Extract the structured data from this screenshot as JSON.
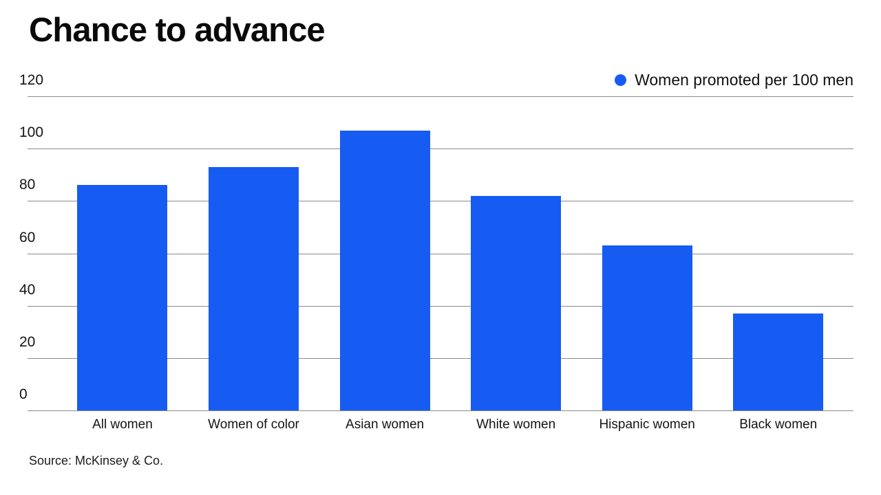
{
  "title": "Chance to advance",
  "legend": {
    "label": "Women promoted per 100 men"
  },
  "source": "Source: McKinsey & Co.",
  "colors": {
    "bar": "#175cf2",
    "gridline": "#8a8a8a",
    "text": "#141414"
  },
  "chart_data": {
    "type": "bar",
    "title": "Chance to advance",
    "series_name": "Women promoted per 100 men",
    "categories": [
      "All women",
      "Women of color",
      "Asian women",
      "White women",
      "Hispanic women",
      "Black women"
    ],
    "values": [
      86,
      93,
      107,
      82,
      63,
      37
    ],
    "xlabel": "",
    "ylabel": "",
    "ylim": [
      0,
      120
    ],
    "yticks": [
      0,
      20,
      40,
      60,
      80,
      100,
      120
    ],
    "grid": true,
    "legend_position": "top-right",
    "source": "Source: McKinsey & Co."
  }
}
